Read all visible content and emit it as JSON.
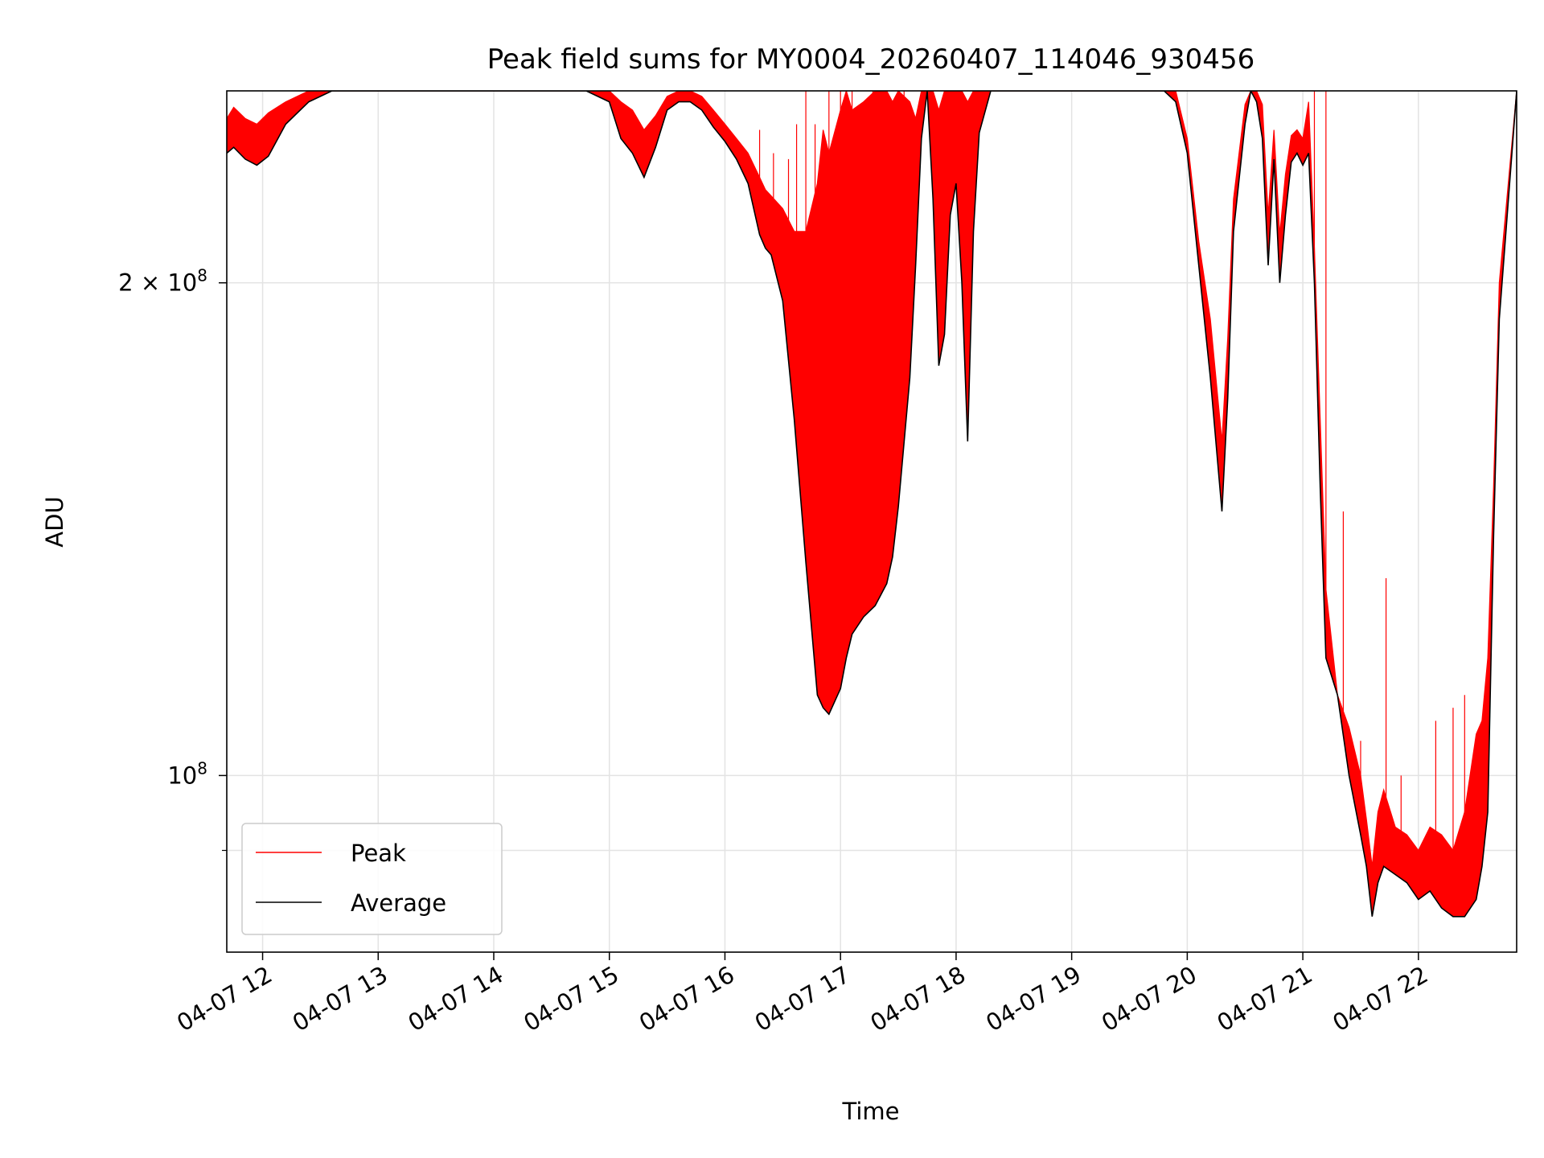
{
  "chart_data": {
    "type": "line",
    "title": "Peak field sums for MY0004_20260407_114046_930456",
    "xlabel": "Time",
    "ylabel": "ADU",
    "yscale": "log",
    "xlim": [
      11.69,
      22.85
    ],
    "ylim": [
      78000000,
      262000000
    ],
    "grid": true,
    "legend_position": "lower-left",
    "x_ticks": [
      {
        "value": 12,
        "label": "04-07 12"
      },
      {
        "value": 13,
        "label": "04-07 13"
      },
      {
        "value": 14,
        "label": "04-07 14"
      },
      {
        "value": 15,
        "label": "04-07 15"
      },
      {
        "value": 16,
        "label": "04-07 16"
      },
      {
        "value": 17,
        "label": "04-07 17"
      },
      {
        "value": 18,
        "label": "04-07 18"
      },
      {
        "value": 19,
        "label": "04-07 19"
      },
      {
        "value": 20,
        "label": "04-07 20"
      },
      {
        "value": 21,
        "label": "04-07 21"
      },
      {
        "value": 22,
        "label": "04-07 22"
      }
    ],
    "y_ticks": [
      {
        "value": 100000000,
        "base": "10",
        "exp": "8",
        "label": "10^8"
      },
      {
        "value": 200000000,
        "mantissa": "2 × 10",
        "exp": "8",
        "label": "2 × 10^8"
      }
    ],
    "y_minor_ticks": [
      90000000
    ],
    "series": [
      {
        "name": "Average",
        "color": "#000000",
        "x": [
          11.69,
          11.75,
          11.85,
          11.95,
          12.05,
          12.2,
          12.4,
          12.6,
          13.0,
          13.5,
          14.0,
          14.5,
          14.8,
          15.0,
          15.1,
          15.2,
          15.3,
          15.4,
          15.5,
          15.6,
          15.7,
          15.8,
          15.9,
          16.0,
          16.1,
          16.2,
          16.3,
          16.35,
          16.4,
          16.5,
          16.6,
          16.7,
          16.8,
          16.85,
          16.9,
          17.0,
          17.05,
          17.1,
          17.2,
          17.3,
          17.4,
          17.45,
          17.5,
          17.6,
          17.65,
          17.7,
          17.75,
          17.8,
          17.85,
          17.9,
          17.95,
          18.0,
          18.05,
          18.1,
          18.15,
          18.2,
          18.3,
          18.5,
          19.0,
          19.5,
          19.8,
          19.9,
          20.0,
          20.1,
          20.2,
          20.3,
          20.35,
          20.4,
          20.5,
          20.55,
          20.6,
          20.65,
          20.7,
          20.75,
          20.8,
          20.85,
          20.9,
          20.95,
          21.0,
          21.05,
          21.1,
          21.15,
          21.2,
          21.3,
          21.4,
          21.5,
          21.55,
          21.6,
          21.65,
          21.7,
          21.8,
          21.9,
          22.0,
          22.1,
          22.2,
          22.3,
          22.4,
          22.5,
          22.55,
          22.6,
          22.65,
          22.7,
          22.85
        ],
        "y": [
          240000000,
          242000000,
          238000000,
          236000000,
          239000000,
          250000000,
          258000000,
          262000000,
          262000000,
          262000000,
          262000000,
          262000000,
          262000000,
          258000000,
          245000000,
          240000000,
          232000000,
          242000000,
          255000000,
          258000000,
          258000000,
          255000000,
          249000000,
          244000000,
          238000000,
          230000000,
          214000000,
          210000000,
          208000000,
          195000000,
          165000000,
          135000000,
          112000000,
          110000000,
          109000000,
          113000000,
          118000000,
          122000000,
          125000000,
          127000000,
          131000000,
          136000000,
          146000000,
          175000000,
          205000000,
          245000000,
          262000000,
          225000000,
          178000000,
          186000000,
          220000000,
          230000000,
          200000000,
          160000000,
          215000000,
          247000000,
          262000000,
          262000000,
          262000000,
          262000000,
          262000000,
          258000000,
          240000000,
          205000000,
          175000000,
          145000000,
          170000000,
          215000000,
          250000000,
          262000000,
          258000000,
          245000000,
          205000000,
          238000000,
          200000000,
          220000000,
          237000000,
          240000000,
          236000000,
          240000000,
          200000000,
          150000000,
          118000000,
          112000000,
          100000000,
          92000000,
          88000000,
          82000000,
          86000000,
          88000000,
          87000000,
          86000000,
          84000000,
          85000000,
          83000000,
          82000000,
          82000000,
          84000000,
          88000000,
          95000000,
          140000000,
          190000000,
          262000000
        ]
      },
      {
        "name": "Peak",
        "color": "#ff0000",
        "x": [
          11.69,
          11.75,
          11.85,
          11.95,
          12.05,
          12.2,
          12.4,
          12.6,
          13.0,
          13.5,
          14.0,
          14.5,
          14.8,
          15.0,
          15.1,
          15.2,
          15.3,
          15.4,
          15.5,
          15.6,
          15.7,
          15.8,
          15.9,
          16.0,
          16.1,
          16.2,
          16.3,
          16.35,
          16.4,
          16.5,
          16.6,
          16.7,
          16.8,
          16.85,
          16.9,
          17.0,
          17.05,
          17.1,
          17.2,
          17.3,
          17.4,
          17.45,
          17.5,
          17.6,
          17.65,
          17.7,
          17.75,
          17.8,
          17.85,
          17.9,
          17.95,
          18.0,
          18.05,
          18.1,
          18.15,
          18.2,
          18.3,
          18.5,
          19.0,
          19.5,
          19.8,
          19.9,
          20.0,
          20.1,
          20.2,
          20.3,
          20.35,
          20.4,
          20.5,
          20.55,
          20.6,
          20.65,
          20.7,
          20.75,
          20.8,
          20.85,
          20.9,
          20.95,
          21.0,
          21.05,
          21.1,
          21.15,
          21.2,
          21.3,
          21.4,
          21.5,
          21.55,
          21.6,
          21.65,
          21.7,
          21.8,
          21.9,
          22.0,
          22.1,
          22.2,
          22.3,
          22.4,
          22.5,
          22.55,
          22.6,
          22.65,
          22.7,
          22.85
        ],
        "y": [
          252000000,
          256000000,
          252000000,
          250000000,
          254000000,
          258000000,
          262000000,
          262000000,
          262000000,
          262000000,
          262000000,
          262000000,
          262000000,
          262000000,
          258000000,
          255000000,
          248000000,
          253000000,
          260000000,
          262000000,
          262000000,
          260000000,
          255000000,
          250000000,
          245000000,
          240000000,
          232000000,
          228000000,
          226000000,
          222000000,
          215000000,
          215000000,
          230000000,
          248000000,
          240000000,
          255000000,
          262000000,
          255000000,
          258000000,
          262000000,
          262000000,
          258000000,
          262000000,
          258000000,
          252000000,
          262000000,
          262000000,
          262000000,
          255000000,
          262000000,
          262000000,
          262000000,
          262000000,
          258000000,
          262000000,
          262000000,
          262000000,
          262000000,
          262000000,
          262000000,
          262000000,
          262000000,
          245000000,
          212000000,
          190000000,
          160000000,
          185000000,
          225000000,
          257000000,
          262000000,
          262000000,
          257000000,
          220000000,
          248000000,
          214000000,
          233000000,
          246000000,
          248000000,
          245000000,
          258000000,
          210000000,
          165000000,
          130000000,
          112000000,
          107000000,
          100000000,
          94000000,
          88000000,
          95000000,
          98000000,
          93000000,
          92000000,
          90000000,
          93000000,
          92000000,
          90000000,
          95000000,
          106000000,
          108000000,
          118000000,
          150000000,
          200000000,
          262000000
        ]
      }
    ],
    "peak_spikes": [
      {
        "x": 16.3,
        "y": 248000000
      },
      {
        "x": 16.42,
        "y": 240000000
      },
      {
        "x": 16.55,
        "y": 238000000
      },
      {
        "x": 16.62,
        "y": 250000000
      },
      {
        "x": 16.7,
        "y": 262000000
      },
      {
        "x": 16.78,
        "y": 250000000
      },
      {
        "x": 16.9,
        "y": 262000000
      },
      {
        "x": 17.0,
        "y": 262000000
      },
      {
        "x": 17.1,
        "y": 262000000
      },
      {
        "x": 17.18,
        "y": 255000000
      },
      {
        "x": 17.28,
        "y": 262000000
      },
      {
        "x": 17.4,
        "y": 262000000
      },
      {
        "x": 17.55,
        "y": 262000000
      },
      {
        "x": 17.7,
        "y": 262000000
      },
      {
        "x": 21.1,
        "y": 262000000
      },
      {
        "x": 21.2,
        "y": 262000000
      },
      {
        "x": 21.35,
        "y": 145000000
      },
      {
        "x": 21.5,
        "y": 105000000
      },
      {
        "x": 21.72,
        "y": 132000000
      },
      {
        "x": 21.85,
        "y": 100000000
      },
      {
        "x": 22.15,
        "y": 108000000
      },
      {
        "x": 22.3,
        "y": 110000000
      },
      {
        "x": 22.4,
        "y": 112000000
      }
    ]
  }
}
